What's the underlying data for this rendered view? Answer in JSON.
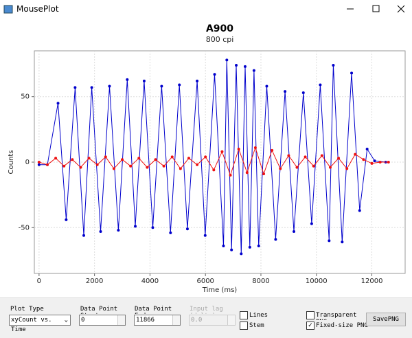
{
  "window": {
    "title": "MousePlot"
  },
  "chart_data": {
    "type": "scatter-line",
    "title": "A900",
    "subtitle": "800 cpi",
    "x_label": "Time (ms)",
    "y_label": "Counts",
    "xlim": [
      -170,
      13200
    ],
    "ylim": [
      -85,
      85
    ],
    "xticks": [
      0,
      2000,
      4000,
      6000,
      8000,
      10000,
      12000
    ],
    "yticks": [
      -50,
      0,
      50
    ],
    "grid": true,
    "series": [
      {
        "color": "#0000cc",
        "x": [
          0,
          300,
          685,
          978,
          1300,
          1613,
          1900,
          2220,
          2540,
          2860,
          3180,
          3470,
          3790,
          4100,
          4420,
          4740,
          5060,
          5350,
          5700,
          5990,
          6330,
          6650,
          6770,
          6940,
          7110,
          7290,
          7430,
          7600,
          7750,
          7920,
          8210,
          8530,
          8870,
          9190,
          9530,
          9830,
          10140,
          10460,
          10610,
          10930,
          11270,
          11560,
          11830,
          12100,
          12500
        ],
        "values": [
          -2,
          -2,
          45,
          -44,
          57,
          -56,
          57,
          -53,
          58,
          -52,
          63,
          -49,
          62,
          -50,
          58,
          -54,
          59,
          -51,
          62,
          -56,
          67,
          -64,
          78,
          -67,
          74,
          -70,
          73,
          -65,
          70,
          -64,
          58,
          -59,
          54,
          -53,
          53,
          -47,
          59,
          -60,
          74,
          -61,
          68,
          -37,
          10,
          1,
          0
        ]
      },
      {
        "color": "#ee1111",
        "x": [
          0,
          300,
          600,
          900,
          1200,
          1500,
          1800,
          2100,
          2400,
          2700,
          3000,
          3300,
          3600,
          3900,
          4200,
          4500,
          4800,
          5100,
          5400,
          5700,
          6000,
          6300,
          6600,
          6900,
          7200,
          7500,
          7800,
          8100,
          8400,
          8700,
          9000,
          9300,
          9600,
          9900,
          10200,
          10500,
          10800,
          11100,
          11400,
          11700,
          12000,
          12300,
          12600
        ],
        "values": [
          0,
          -2,
          3,
          -3,
          2,
          -4,
          3,
          -2,
          4,
          -5,
          2,
          -3,
          3,
          -4,
          2,
          -3,
          4,
          -5,
          3,
          -2,
          4,
          -6,
          8,
          -10,
          10,
          -8,
          11,
          -9,
          9,
          -5,
          5,
          -4,
          4,
          -3,
          5,
          -4,
          3,
          -5,
          6,
          2,
          -1,
          0,
          0
        ]
      }
    ]
  },
  "controls": {
    "plot_type": {
      "label": "Plot Type",
      "value": "xyCount vs. Time"
    },
    "start": {
      "label": "Data Point Start",
      "value": "0"
    },
    "end": {
      "label": "Data Point End",
      "value": "11866"
    },
    "lag": {
      "label": "Input lag (delta)",
      "value": "0.0"
    },
    "lines": {
      "label": "Lines",
      "checked": false
    },
    "stem": {
      "label": "Stem",
      "checked": false
    },
    "transparent": {
      "label": "Transparent PNG",
      "checked": false
    },
    "fixed": {
      "label": "Fixed-size PNG",
      "checked": true
    },
    "save": {
      "label": "SavePNG"
    }
  }
}
